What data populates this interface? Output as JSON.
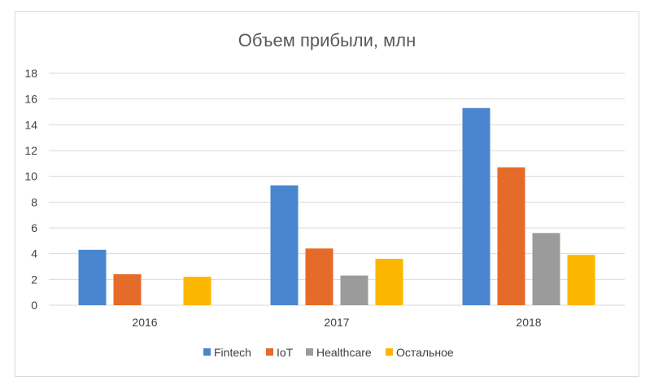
{
  "chart_data": {
    "type": "bar",
    "title": "Объем прибыли,  млн",
    "xlabel": "",
    "ylabel": "",
    "categories": [
      "2016",
      "2017",
      "2018"
    ],
    "series": [
      {
        "name": "Fintech",
        "color": "#4a86cf",
        "values": [
          4.3,
          9.3,
          15.3
        ]
      },
      {
        "name": "IoT",
        "color": "#e56b2a",
        "values": [
          2.4,
          4.4,
          10.7
        ]
      },
      {
        "name": "Healthcare",
        "color": "#9b9b9b",
        "values": [
          0,
          2.3,
          5.6
        ]
      },
      {
        "name": "Остальное",
        "color": "#fbb600",
        "values": [
          2.2,
          3.6,
          3.9
        ]
      }
    ],
    "ylim": [
      0,
      18
    ],
    "yticks": [
      "0",
      "2",
      "4",
      "6",
      "8",
      "10",
      "12",
      "14",
      "16",
      "18"
    ],
    "grid": true,
    "legend_position": "bottom"
  }
}
